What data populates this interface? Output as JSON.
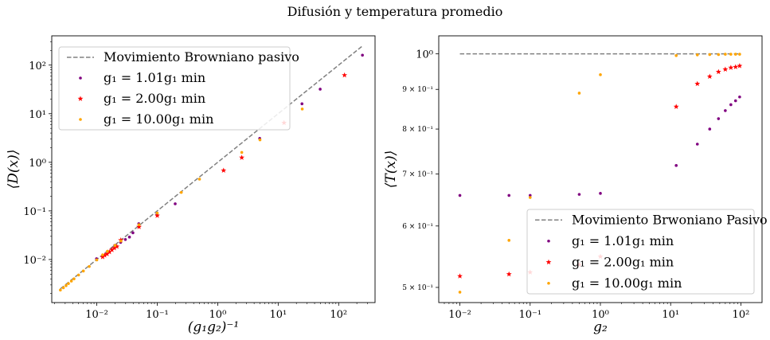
{
  "title": "Difusión y temperatura promedio",
  "chart_data": [
    {
      "type": "scatter",
      "xlabel": "(g₁g₂)⁻¹",
      "ylabel": "⟨D(x)⟩",
      "xscale": "log",
      "yscale": "log",
      "xlim": [
        0.0018,
        400
      ],
      "ylim": [
        0.0013,
        400
      ],
      "xticks": [
        0.01,
        0.1,
        1,
        10,
        100
      ],
      "xtick_labels": [
        "10⁻²",
        "10⁻¹",
        "10⁰",
        "10¹",
        "10²"
      ],
      "yticks": [
        0.01,
        0.1,
        1,
        10,
        100
      ],
      "ytick_labels": [
        "10⁻²",
        "10⁻¹",
        "10⁰",
        "10¹",
        "10²"
      ],
      "grid": false,
      "legend_position": "top-left",
      "series": [
        {
          "name": "Movimiento Browniano pasivo",
          "kind": "line",
          "style": "dashed",
          "color": "#808080",
          "x": [
            0.0025,
            250
          ],
          "y": [
            0.0025,
            250
          ]
        },
        {
          "name": "g₁ = 1.01g₁ min",
          "kind": "points",
          "marker": "dot",
          "color": "#800080",
          "x": [
            0.0099,
            0.0198,
            0.0248,
            0.0297,
            0.0347,
            0.0396,
            0.0495,
            0.099,
            0.198,
            4.95,
            24.75,
            49.5,
            247.5
          ],
          "y": [
            0.0104,
            0.0195,
            0.0225,
            0.0258,
            0.029,
            0.0355,
            0.0545,
            0.085,
            0.14,
            3.1,
            16.0,
            32.0,
            160.0
          ]
        },
        {
          "name": "g₁ = 2.00g₁ min",
          "kind": "points",
          "marker": "star",
          "color": "#ff0000",
          "x": [
            0.0125,
            0.0135,
            0.0148,
            0.0162,
            0.0178,
            0.0195,
            0.0215,
            0.025,
            0.05,
            0.1,
            1.25,
            2.5,
            12.5,
            125
          ],
          "y": [
            0.0113,
            0.0122,
            0.013,
            0.0143,
            0.0158,
            0.0172,
            0.0185,
            0.025,
            0.047,
            0.08,
            0.68,
            1.25,
            6.5,
            62.0
          ]
        },
        {
          "name": "g₁ = 10.00g₁ min",
          "kind": "points",
          "marker": "dot",
          "color": "#ffa500",
          "x": [
            0.0025,
            0.0028,
            0.0031,
            0.0034,
            0.0038,
            0.0042,
            0.005,
            0.006,
            0.0075,
            0.01,
            0.0125,
            0.015,
            0.02,
            0.025,
            0.05,
            0.1,
            0.25,
            0.5,
            2.5,
            5,
            25
          ],
          "y": [
            0.00235,
            0.00262,
            0.0029,
            0.0032,
            0.0036,
            0.004,
            0.0048,
            0.0058,
            0.0072,
            0.0098,
            0.0125,
            0.0148,
            0.0195,
            0.024,
            0.052,
            0.09,
            0.24,
            0.45,
            1.6,
            2.9,
            12.5
          ]
        }
      ]
    },
    {
      "type": "scatter",
      "xlabel": "g₂",
      "ylabel": "⟨T(x)⟩",
      "xscale": "log",
      "yscale": "log",
      "xlim": [
        0.005,
        200
      ],
      "ylim": [
        0.478,
        1.055
      ],
      "xticks": [
        0.01,
        0.1,
        1,
        10,
        100
      ],
      "xtick_labels": [
        "10⁻²",
        "10⁻¹",
        "10⁰",
        "10¹",
        "10²"
      ],
      "yticks": [
        1.0,
        0.9,
        0.8,
        0.7,
        0.6,
        0.5
      ],
      "ytick_labels": [
        "10⁰",
        "9 × 10⁻¹",
        "8 × 10⁻¹",
        "7 × 10⁻¹",
        "6 × 10⁻¹",
        "5 × 10⁻¹"
      ],
      "grid": false,
      "legend_position": "bottom-right",
      "series": [
        {
          "name": "Movimiento Brwoniano Pasivo",
          "kind": "line",
          "style": "dashed",
          "color": "#808080",
          "x": [
            0.01,
            100
          ],
          "y": [
            1.0,
            1.0
          ]
        },
        {
          "name": "g₁ = 1.01g₁ min",
          "kind": "points",
          "marker": "dot",
          "color": "#800080",
          "x": [
            0.01,
            0.05,
            0.1,
            0.5,
            1,
            12,
            24,
            36,
            48,
            60,
            72,
            84,
            96
          ],
          "y": [
            0.657,
            0.657,
            0.657,
            0.659,
            0.661,
            0.718,
            0.765,
            0.8,
            0.825,
            0.845,
            0.86,
            0.87,
            0.88
          ]
        },
        {
          "name": "g₁ = 2.00g₁ min",
          "kind": "points",
          "marker": "star",
          "color": "#ff0000",
          "x": [
            0.01,
            0.05,
            0.1,
            0.5,
            1,
            12,
            24,
            36,
            48,
            60,
            72,
            84,
            96
          ],
          "y": [
            0.517,
            0.52,
            0.523,
            0.535,
            0.548,
            0.855,
            0.915,
            0.935,
            0.948,
            0.955,
            0.96,
            0.962,
            0.965
          ]
        },
        {
          "name": "g₁ = 10.00g₁ min",
          "kind": "points",
          "marker": "dot",
          "color": "#ffa500",
          "x": [
            0.01,
            0.05,
            0.1,
            0.5,
            1,
            12,
            24,
            36,
            48,
            60,
            72,
            84,
            96
          ],
          "y": [
            0.493,
            0.575,
            0.653,
            0.89,
            0.94,
            0.995,
            0.997,
            0.998,
            0.998,
            0.999,
            0.999,
            0.999,
            0.999
          ]
        }
      ]
    }
  ]
}
